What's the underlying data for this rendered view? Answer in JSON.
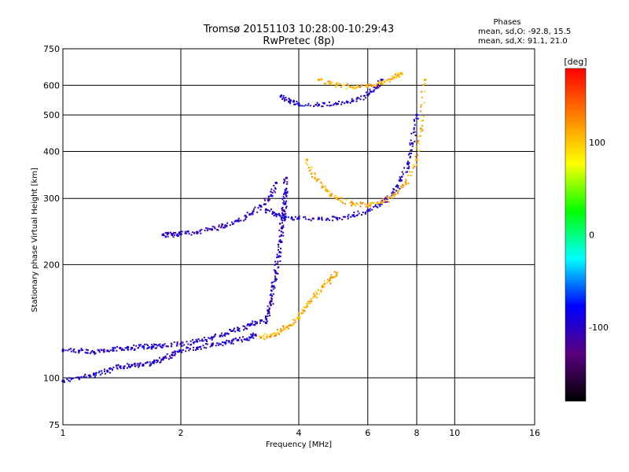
{
  "chart_data": {
    "type": "scatter",
    "title": "Tromsø 20151103 10:28:00-10:29:43",
    "subtitle": "RwPretec (8p)",
    "xlabel": "Frequency [MHz]",
    "ylabel": "Stationary phase Virtual Height [km]",
    "x_scale": "log",
    "y_scale": "log",
    "xlim": [
      1,
      16
    ],
    "ylim": [
      75,
      750
    ],
    "x_ticks": [
      {
        "value": 1,
        "label": "1"
      },
      {
        "value": 2,
        "label": "2"
      },
      {
        "value": 4,
        "label": "4"
      },
      {
        "value": 6,
        "label": "6"
      },
      {
        "value": 8,
        "label": "8"
      },
      {
        "value": 10,
        "label": "10"
      },
      {
        "value": 16,
        "label": "16"
      }
    ],
    "y_ticks": [
      {
        "value": 75,
        "label": "75"
      },
      {
        "value": 100,
        "label": "100"
      },
      {
        "value": 200,
        "label": "200"
      },
      {
        "value": 300,
        "label": "300"
      },
      {
        "value": 400,
        "label": "400"
      },
      {
        "value": 500,
        "label": "500"
      },
      {
        "value": 600,
        "label": "600"
      },
      {
        "value": 750,
        "label": "750"
      }
    ],
    "grid": true,
    "stats": {
      "title": "Phases",
      "line_o": "mean, sd,O: -92.8, 15.5",
      "line_x": "mean, sd,X:  91.1, 21.0"
    },
    "colorbar": {
      "label": "[deg]",
      "range": [
        -180,
        180
      ],
      "ticks": [
        {
          "value": 100,
          "label": "100"
        },
        {
          "value": 0,
          "label": "0"
        },
        {
          "value": -100,
          "label": "-100"
        }
      ],
      "colors": [
        "#000000",
        "#5a0080",
        "#0000ff",
        "#00ffff",
        "#00ff00",
        "#ffff00",
        "#ff8000",
        "#ff0000"
      ]
    },
    "series": [
      {
        "mode": "O",
        "phase": -95,
        "segment": "E-trace low",
        "x": [
          1.0,
          1.1,
          1.2,
          1.3,
          1.4,
          1.5,
          1.6,
          1.7,
          1.8,
          1.9,
          2.0,
          2.2,
          2.4,
          2.6,
          2.8,
          3.0,
          3.1
        ],
        "y": [
          98,
          100,
          102,
          104,
          107,
          108,
          108,
          110,
          112,
          115,
          118,
          120,
          122,
          124,
          126,
          128,
          130
        ]
      },
      {
        "mode": "O",
        "phase": -95,
        "segment": "E-trace upper",
        "x": [
          1.0,
          1.1,
          1.2,
          1.3,
          1.4,
          1.5,
          1.6,
          1.7,
          1.8,
          2.0,
          2.2,
          2.4,
          2.6,
          2.8,
          3.0,
          3.2
        ],
        "y": [
          118,
          118,
          117,
          118,
          120,
          120,
          121,
          121,
          122,
          123,
          125,
          128,
          131,
          134,
          138,
          142
        ]
      },
      {
        "mode": "O",
        "phase": -100,
        "segment": "E cusp column",
        "x": [
          3.3,
          3.35,
          3.4,
          3.45,
          3.5,
          3.55,
          3.6,
          3.62,
          3.65,
          3.68,
          3.7,
          3.72
        ],
        "y": [
          140,
          150,
          160,
          175,
          190,
          210,
          230,
          250,
          270,
          290,
          310,
          340
        ]
      },
      {
        "mode": "O",
        "phase": -100,
        "segment": "F1 low",
        "x": [
          1.8,
          1.9,
          2.0,
          2.2,
          2.4,
          2.6,
          2.8,
          3.0,
          3.2,
          3.4,
          3.5
        ],
        "y": [
          240,
          240,
          241,
          244,
          248,
          254,
          262,
          272,
          286,
          305,
          330
        ]
      },
      {
        "mode": "O",
        "phase": -95,
        "segment": "F2 trace",
        "x": [
          3.3,
          3.5,
          3.7,
          4.0,
          4.5,
          5.0,
          5.5,
          6.0,
          6.5,
          7.0,
          7.3,
          7.6,
          7.8,
          8.0
        ],
        "y": [
          280,
          272,
          268,
          266,
          265,
          266,
          270,
          278,
          290,
          310,
          335,
          370,
          420,
          500
        ]
      },
      {
        "mode": "O",
        "phase": -95,
        "segment": "F2 multiple",
        "x": [
          3.6,
          3.8,
          4.0,
          4.5,
          5.0,
          5.5,
          6.0,
          6.3,
          6.5
        ],
        "y": [
          560,
          545,
          535,
          532,
          535,
          545,
          565,
          590,
          620
        ]
      },
      {
        "mode": "X",
        "phase": 110,
        "segment": "E X-trace",
        "x": [
          3.2,
          3.4,
          3.6,
          3.8,
          4.0,
          4.2,
          4.4,
          4.6,
          4.8,
          5.0
        ],
        "y": [
          128,
          130,
          133,
          138,
          145,
          155,
          165,
          175,
          182,
          190
        ]
      },
      {
        "mode": "X",
        "phase": 110,
        "segment": "F2 X-trace",
        "x": [
          4.2,
          4.4,
          4.7,
          5.0,
          5.5,
          6.0,
          6.5,
          7.0,
          7.5,
          8.0,
          8.2,
          8.4
        ],
        "y": [
          380,
          340,
          315,
          300,
          290,
          288,
          292,
          305,
          330,
          380,
          460,
          620
        ]
      },
      {
        "mode": "X",
        "phase": 110,
        "segment": "F2 X multiple",
        "x": [
          4.5,
          5.0,
          5.5,
          6.0,
          6.5,
          7.0,
          7.3
        ],
        "y": [
          620,
          600,
          592,
          596,
          608,
          630,
          645
        ]
      }
    ]
  }
}
